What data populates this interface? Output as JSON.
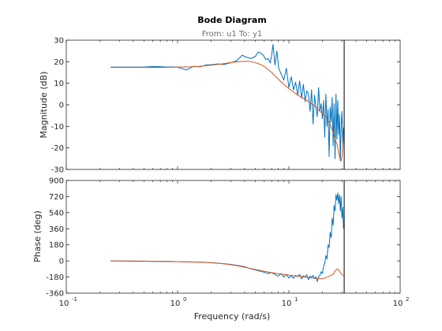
{
  "chart_data": {
    "type": "line",
    "title": "Bode Diagram",
    "subtitle": "From: u1  To: y1",
    "xlabel": "Frequency  (rad/s)",
    "xscale": "log",
    "xlim": [
      0.1,
      100
    ],
    "xtick_labels": [
      "10",
      "10",
      "10",
      "10"
    ],
    "xtick_exponents": [
      "-1",
      "0",
      "1",
      "2"
    ],
    "xticks": [
      0.1,
      1,
      10,
      100
    ],
    "vertical_line_x": 31.4,
    "colors": {
      "measured": "#0072BD",
      "model": "#D95319",
      "marker": "#000000"
    },
    "magnitude": {
      "ylabel": "Magnitude (dB)",
      "ylim": [
        -30,
        30
      ],
      "yticks": [
        -30,
        -20,
        -10,
        0,
        10,
        20,
        30
      ],
      "series": [
        {
          "key": "measured",
          "x": [
            0.25,
            0.3,
            0.35,
            0.4,
            0.5,
            0.6,
            0.7,
            0.8,
            0.9,
            1.0,
            1.1,
            1.2,
            1.4,
            1.6,
            1.8,
            2.0,
            2.3,
            2.6,
            3.0,
            3.4,
            3.8,
            4.2,
            4.6,
            5.0,
            5.3,
            5.6,
            5.9,
            6.2,
            6.5,
            6.8,
            7.0,
            7.2,
            7.5,
            7.8,
            8.1,
            8.5,
            9.0,
            9.5,
            10.0,
            10.5,
            11.0,
            11.5,
            12.0,
            12.5,
            13.0,
            13.5,
            14.0,
            14.5,
            15.0,
            15.5,
            16.0,
            16.5,
            17.0,
            17.5,
            18.0,
            18.5,
            19.0,
            19.5,
            20.0,
            20.5,
            21.0,
            21.5,
            22.0,
            22.5,
            23.0,
            23.5,
            24.0,
            24.5,
            25.0,
            25.5,
            26.0,
            26.5,
            27.0,
            27.5,
            28.0,
            28.5,
            29.0,
            29.5,
            30.0,
            30.5,
            31.0
          ],
          "y": [
            17.5,
            17.5,
            17.5,
            17.5,
            17.5,
            17.8,
            17.7,
            17.5,
            17.6,
            17.5,
            16.8,
            16.2,
            17.9,
            17.6,
            18.5,
            18.6,
            19.0,
            18.7,
            19.5,
            20.5,
            23.0,
            22.0,
            21.5,
            22.5,
            24.5,
            24.0,
            23.0,
            21.0,
            21.5,
            19.5,
            23.0,
            28.0,
            18.5,
            25.0,
            17.0,
            14.5,
            11.5,
            17.0,
            8.0,
            13.0,
            7.0,
            10.5,
            4.5,
            11.0,
            3.0,
            9.5,
            1.5,
            6.5,
            5.0,
            -3.0,
            7.0,
            -9.0,
            4.5,
            -1.0,
            -5.5,
            8.0,
            -3.0,
            0.5,
            -6.5,
            2.0,
            -15.0,
            5.0,
            -10.0,
            -2.0,
            -24.0,
            -1.0,
            -8.0,
            3.5,
            -19.0,
            0.5,
            -25.0,
            5.0,
            -16.0,
            2.0,
            -14.0,
            -4.5,
            -26.0,
            -10.0,
            -3.0,
            -18.0,
            -10.5
          ]
        },
        {
          "key": "model",
          "x": [
            0.25,
            0.4,
            0.6,
            0.8,
            1.0,
            1.3,
            1.6,
            2.0,
            2.5,
            3.0,
            3.5,
            4.0,
            4.5,
            5.0,
            5.5,
            6.0,
            6.5,
            7.0,
            7.5,
            8.0,
            9.0,
            10.0,
            11.0,
            12.0,
            13.0,
            14.0,
            15.0,
            16.0,
            17.0,
            18.0,
            19.0,
            20.0,
            21.0,
            22.0,
            23.0,
            24.0,
            25.0,
            26.0,
            27.0,
            27.5,
            28.0,
            28.5,
            29.0,
            29.5,
            30.0,
            30.5,
            31.0
          ],
          "y": [
            17.4,
            17.4,
            17.4,
            17.4,
            17.5,
            17.6,
            17.9,
            18.4,
            19.0,
            19.6,
            20.0,
            20.2,
            20.1,
            19.6,
            18.8,
            17.8,
            16.5,
            15.0,
            13.5,
            12.0,
            9.5,
            7.5,
            6.0,
            4.5,
            3.5,
            2.5,
            1.5,
            0.5,
            -0.5,
            -1.5,
            -3.0,
            -4.0,
            -5.5,
            -6.0,
            -8.0,
            -10.0,
            -13.0,
            -16.0,
            -18.0,
            -20.0,
            -22.0,
            -24.0,
            -25.5,
            -26.0,
            -24.0,
            -20.0,
            -14.0
          ]
        }
      ]
    },
    "phase": {
      "ylabel": "Phase (deg)",
      "ylim": [
        -360,
        900
      ],
      "yticks": [
        -360,
        -180,
        0,
        180,
        360,
        540,
        720,
        900
      ],
      "series": [
        {
          "key": "measured",
          "x": [
            0.25,
            0.3,
            0.4,
            0.5,
            0.6,
            0.8,
            1.0,
            1.2,
            1.5,
            2.0,
            2.5,
            3.0,
            3.5,
            4.0,
            4.5,
            5.0,
            5.5,
            6.0,
            6.5,
            7.0,
            7.5,
            8.0,
            8.5,
            9.0,
            9.5,
            10.0,
            10.5,
            11.0,
            11.5,
            12.0,
            12.5,
            13.0,
            13.5,
            14.0,
            14.5,
            15.0,
            15.5,
            16.0,
            16.5,
            17.0,
            17.5,
            18.0,
            18.5,
            19.0,
            19.5,
            20.0,
            20.5,
            21.0,
            21.5,
            22.0,
            22.5,
            23.0,
            23.5,
            24.0,
            24.5,
            25.0,
            25.5,
            26.0,
            26.5,
            27.0,
            27.5,
            28.0,
            28.5,
            29.0,
            29.5,
            30.0,
            30.5,
            31.0
          ],
          "y": [
            0,
            0,
            -3,
            -2,
            -5,
            -4,
            -8,
            -10,
            -12,
            -18,
            -28,
            -38,
            -50,
            -65,
            -85,
            -100,
            -115,
            -125,
            -140,
            -130,
            -150,
            -170,
            -140,
            -180,
            -150,
            -190,
            -165,
            -195,
            -160,
            -175,
            -150,
            -200,
            -165,
            -180,
            -155,
            -210,
            -170,
            -185,
            -160,
            -200,
            -175,
            -230,
            -180,
            -160,
            -120,
            -140,
            -60,
            -30,
            60,
            20,
            180,
            150,
            320,
            260,
            480,
            400,
            620,
            560,
            740,
            680,
            760,
            640,
            740,
            560,
            720,
            480,
            600,
            360
          ]
        },
        {
          "key": "model",
          "x": [
            0.25,
            0.4,
            0.6,
            0.8,
            1.0,
            1.5,
            2.0,
            2.5,
            3.0,
            3.5,
            4.0,
            5.0,
            6.0,
            7.0,
            8.0,
            9.0,
            10.0,
            12.0,
            14.0,
            16.0,
            18.0,
            20.0,
            21.0,
            22.0,
            23.0,
            24.0,
            25.0,
            26.0,
            27.0,
            28.0,
            29.0,
            30.0,
            30.5,
            31.0
          ],
          "y": [
            0,
            -1,
            -3,
            -5,
            -7,
            -13,
            -20,
            -30,
            -42,
            -55,
            -70,
            -95,
            -115,
            -130,
            -142,
            -150,
            -158,
            -170,
            -180,
            -188,
            -195,
            -200,
            -190,
            -180,
            -170,
            -160,
            -150,
            -110,
            -90,
            -100,
            -130,
            -150,
            -160,
            -165
          ]
        }
      ]
    }
  }
}
